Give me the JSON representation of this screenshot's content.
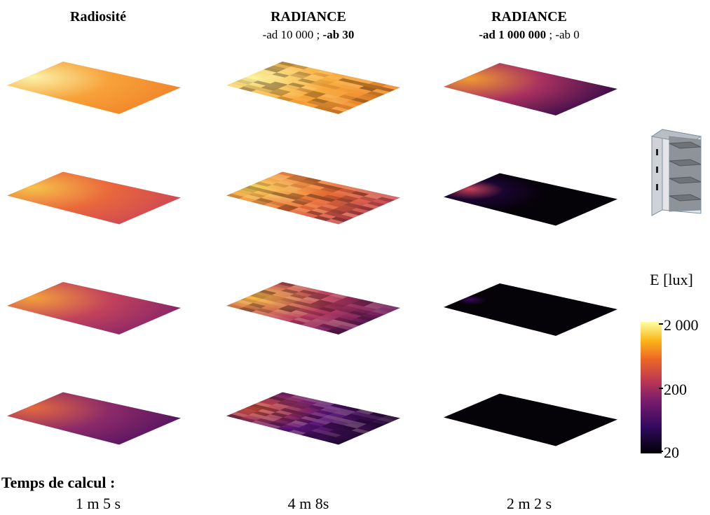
{
  "columns": [
    {
      "title": "Radiosité",
      "time": "1 m 5 s"
    },
    {
      "title": "RADIANCE",
      "subtitle": [
        {
          "text": "-ad 10 000 ; ",
          "bold": false
        },
        {
          "text": "-ab 30",
          "bold": true
        }
      ],
      "time": "4 m 8s"
    },
    {
      "title": "RADIANCE",
      "subtitle": [
        {
          "text": "-ad 1 000 000",
          "bold": true
        },
        {
          "text": " ; -ab 0",
          "bold": false
        }
      ],
      "time": "2 m 2 s"
    }
  ],
  "time_label": "Temps de calcul :",
  "colorbar": {
    "title": "E [lux]",
    "ticks": [
      "2 000",
      "200",
      "20"
    ]
  }
}
